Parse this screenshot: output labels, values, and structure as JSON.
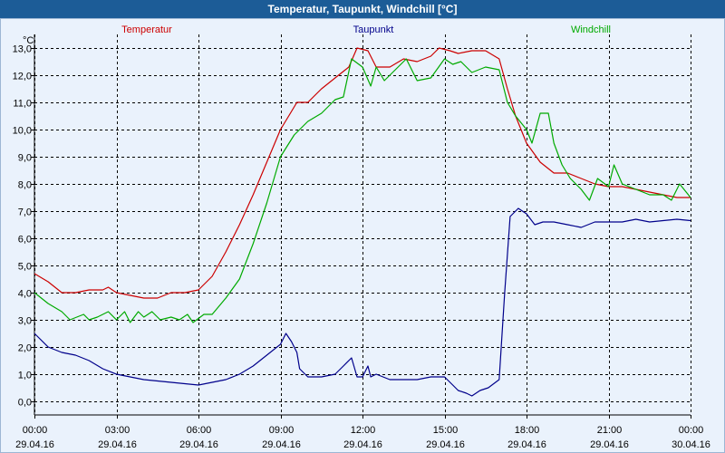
{
  "window": {
    "title": "Temperatur, Taupunkt, Windchill [°C]"
  },
  "chart_data": {
    "type": "line",
    "title": "Temperatur, Taupunkt, Windchill [°C]",
    "ylabel": "°C",
    "ylim": [
      -0.5,
      13.5
    ],
    "xlim_hours": [
      0,
      24
    ],
    "grid": true,
    "y_ticks": [
      "0,0",
      "1,0",
      "2,0",
      "3,0",
      "4,0",
      "5,0",
      "6,0",
      "7,0",
      "8,0",
      "9,0",
      "10,0",
      "11,0",
      "12,0",
      "13,0"
    ],
    "y_tick_values": [
      0,
      1,
      2,
      3,
      4,
      5,
      6,
      7,
      8,
      9,
      10,
      11,
      12,
      13
    ],
    "x_ticks": [
      {
        "hour": 0,
        "time": "00:00",
        "date": "29.04.16"
      },
      {
        "hour": 3,
        "time": "03:00",
        "date": "29.04.16"
      },
      {
        "hour": 6,
        "time": "06:00",
        "date": "29.04.16"
      },
      {
        "hour": 9,
        "time": "09:00",
        "date": "29.04.16"
      },
      {
        "hour": 12,
        "time": "12:00",
        "date": "29.04.16"
      },
      {
        "hour": 15,
        "time": "15:00",
        "date": "29.04.16"
      },
      {
        "hour": 18,
        "time": "18:00",
        "date": "29.04.16"
      },
      {
        "hour": 21,
        "time": "21:00",
        "date": "29.04.16"
      },
      {
        "hour": 24,
        "time": "00:00",
        "date": "30.04.16"
      }
    ],
    "series": [
      {
        "name": "Temperatur",
        "color": "#cc0000",
        "points": [
          [
            0,
            4.7
          ],
          [
            0.5,
            4.4
          ],
          [
            1,
            4.0
          ],
          [
            1.5,
            4.0
          ],
          [
            2,
            4.1
          ],
          [
            2.5,
            4.1
          ],
          [
            2.7,
            4.2
          ],
          [
            3,
            4.0
          ],
          [
            3.5,
            3.9
          ],
          [
            4,
            3.8
          ],
          [
            4.5,
            3.8
          ],
          [
            5,
            4.0
          ],
          [
            5.5,
            4.0
          ],
          [
            6,
            4.1
          ],
          [
            6.5,
            4.6
          ],
          [
            7,
            5.5
          ],
          [
            7.5,
            6.5
          ],
          [
            8,
            7.6
          ],
          [
            8.5,
            8.8
          ],
          [
            9,
            10.0
          ],
          [
            9.3,
            10.5
          ],
          [
            9.6,
            11.0
          ],
          [
            10,
            11.0
          ],
          [
            10.5,
            11.5
          ],
          [
            11,
            11.9
          ],
          [
            11.5,
            12.3
          ],
          [
            11.8,
            13.0
          ],
          [
            12.2,
            12.9
          ],
          [
            12.5,
            12.3
          ],
          [
            13,
            12.3
          ],
          [
            13.5,
            12.6
          ],
          [
            14,
            12.5
          ],
          [
            14.5,
            12.7
          ],
          [
            14.8,
            13.0
          ],
          [
            15.2,
            12.9
          ],
          [
            15.5,
            12.8
          ],
          [
            16,
            12.9
          ],
          [
            16.5,
            12.9
          ],
          [
            17,
            12.6
          ],
          [
            17.3,
            11.5
          ],
          [
            17.6,
            10.5
          ],
          [
            18,
            9.5
          ],
          [
            18.5,
            8.8
          ],
          [
            19,
            8.4
          ],
          [
            19.5,
            8.4
          ],
          [
            20,
            8.2
          ],
          [
            20.5,
            8.0
          ],
          [
            21,
            7.9
          ],
          [
            21.5,
            7.9
          ],
          [
            22,
            7.8
          ],
          [
            22.5,
            7.7
          ],
          [
            23,
            7.6
          ],
          [
            23.5,
            7.5
          ],
          [
            24,
            7.5
          ]
        ]
      },
      {
        "name": "Taupunkt",
        "color": "#00008b",
        "points": [
          [
            0,
            2.5
          ],
          [
            0.5,
            2.0
          ],
          [
            1,
            1.8
          ],
          [
            1.5,
            1.7
          ],
          [
            2,
            1.5
          ],
          [
            2.5,
            1.2
          ],
          [
            3,
            1.0
          ],
          [
            3.5,
            0.9
          ],
          [
            4,
            0.8
          ],
          [
            4.5,
            0.75
          ],
          [
            5,
            0.7
          ],
          [
            5.5,
            0.65
          ],
          [
            6,
            0.6
          ],
          [
            6.5,
            0.7
          ],
          [
            7,
            0.8
          ],
          [
            7.5,
            1.0
          ],
          [
            8,
            1.3
          ],
          [
            8.5,
            1.7
          ],
          [
            9,
            2.1
          ],
          [
            9.2,
            2.5
          ],
          [
            9.4,
            2.2
          ],
          [
            9.6,
            1.8
          ],
          [
            9.7,
            1.2
          ],
          [
            10,
            0.9
          ],
          [
            10.5,
            0.9
          ],
          [
            11,
            1.0
          ],
          [
            11.3,
            1.3
          ],
          [
            11.6,
            1.6
          ],
          [
            11.8,
            0.9
          ],
          [
            12,
            0.9
          ],
          [
            12.2,
            1.3
          ],
          [
            12.3,
            0.9
          ],
          [
            12.5,
            1.0
          ],
          [
            13,
            0.8
          ],
          [
            13.5,
            0.8
          ],
          [
            14,
            0.8
          ],
          [
            14.5,
            0.9
          ],
          [
            15,
            0.9
          ],
          [
            15.3,
            0.6
          ],
          [
            15.5,
            0.4
          ],
          [
            15.8,
            0.3
          ],
          [
            16,
            0.2
          ],
          [
            16.3,
            0.4
          ],
          [
            16.6,
            0.5
          ],
          [
            17,
            0.8
          ],
          [
            17.2,
            4.0
          ],
          [
            17.4,
            6.8
          ],
          [
            17.7,
            7.1
          ],
          [
            18,
            6.9
          ],
          [
            18.3,
            6.5
          ],
          [
            18.6,
            6.6
          ],
          [
            19,
            6.6
          ],
          [
            19.5,
            6.5
          ],
          [
            20,
            6.4
          ],
          [
            20.5,
            6.6
          ],
          [
            21,
            6.6
          ],
          [
            21.5,
            6.6
          ],
          [
            22,
            6.7
          ],
          [
            22.5,
            6.6
          ],
          [
            23,
            6.65
          ],
          [
            23.5,
            6.7
          ],
          [
            24,
            6.65
          ]
        ]
      },
      {
        "name": "Windchill",
        "color": "#00aa00",
        "points": [
          [
            0,
            4.0
          ],
          [
            0.5,
            3.6
          ],
          [
            1,
            3.3
          ],
          [
            1.3,
            3.0
          ],
          [
            1.8,
            3.2
          ],
          [
            2,
            3.0
          ],
          [
            2.3,
            3.1
          ],
          [
            2.7,
            3.3
          ],
          [
            3,
            3.0
          ],
          [
            3.3,
            3.3
          ],
          [
            3.5,
            2.9
          ],
          [
            3.8,
            3.3
          ],
          [
            4,
            3.1
          ],
          [
            4.3,
            3.3
          ],
          [
            4.6,
            3.0
          ],
          [
            5,
            3.1
          ],
          [
            5.3,
            3.0
          ],
          [
            5.6,
            3.2
          ],
          [
            5.8,
            2.9
          ],
          [
            6.2,
            3.2
          ],
          [
            6.5,
            3.2
          ],
          [
            7,
            3.8
          ],
          [
            7.5,
            4.5
          ],
          [
            8,
            5.8
          ],
          [
            8.5,
            7.3
          ],
          [
            9,
            9.0
          ],
          [
            9.5,
            9.8
          ],
          [
            10,
            10.3
          ],
          [
            10.5,
            10.6
          ],
          [
            11,
            11.1
          ],
          [
            11.3,
            11.2
          ],
          [
            11.6,
            12.6
          ],
          [
            12,
            12.3
          ],
          [
            12.3,
            11.6
          ],
          [
            12.5,
            12.3
          ],
          [
            12.8,
            11.8
          ],
          [
            13.2,
            12.2
          ],
          [
            13.6,
            12.6
          ],
          [
            14,
            11.8
          ],
          [
            14.5,
            11.9
          ],
          [
            15,
            12.6
          ],
          [
            15.3,
            12.4
          ],
          [
            15.6,
            12.5
          ],
          [
            16,
            12.1
          ],
          [
            16.5,
            12.3
          ],
          [
            17,
            12.2
          ],
          [
            17.3,
            11.0
          ],
          [
            17.6,
            10.5
          ],
          [
            18,
            10.0
          ],
          [
            18.2,
            9.5
          ],
          [
            18.5,
            10.6
          ],
          [
            18.8,
            10.6
          ],
          [
            19,
            9.5
          ],
          [
            19.3,
            8.7
          ],
          [
            19.6,
            8.2
          ],
          [
            20,
            7.8
          ],
          [
            20.3,
            7.4
          ],
          [
            20.6,
            8.2
          ],
          [
            21,
            7.9
          ],
          [
            21.2,
            8.7
          ],
          [
            21.5,
            8.0
          ],
          [
            22,
            7.8
          ],
          [
            22.5,
            7.6
          ],
          [
            23,
            7.6
          ],
          [
            23.3,
            7.4
          ],
          [
            23.6,
            8.0
          ],
          [
            24,
            7.5
          ]
        ]
      }
    ]
  }
}
